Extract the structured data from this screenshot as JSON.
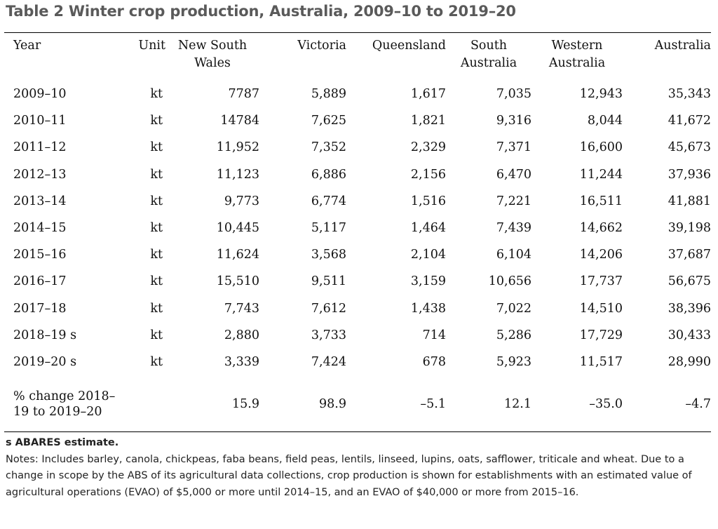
{
  "title": "Table 2 Winter crop production, Australia, 2009–10 to 2019–20",
  "columns": {
    "year": "Year",
    "unit": "Unit",
    "nsw": [
      "New South",
      "Wales"
    ],
    "vic": "Victoria",
    "qld": "Queensland",
    "sa": [
      "South",
      "Australia"
    ],
    "wa": [
      "Western",
      "Australia"
    ],
    "aus": "Australia"
  },
  "rows": [
    {
      "year": "2009–10",
      "unit": "kt",
      "nsw": "7787",
      "vic": "5,889",
      "qld": "1,617",
      "sa": "7,035",
      "wa": "12,943",
      "aus": "35,343"
    },
    {
      "year": "2010–11",
      "unit": "kt",
      "nsw": "14784",
      "vic": "7,625",
      "qld": "1,821",
      "sa": "9,316",
      "wa": "8,044",
      "aus": "41,672"
    },
    {
      "year": "2011–12",
      "unit": "kt",
      "nsw": "11,952",
      "vic": "7,352",
      "qld": "2,329",
      "sa": "7,371",
      "wa": "16,600",
      "aus": "45,673"
    },
    {
      "year": "2012–13",
      "unit": "kt",
      "nsw": "11,123",
      "vic": "6,886",
      "qld": "2,156",
      "sa": "6,470",
      "wa": "11,244",
      "aus": "37,936"
    },
    {
      "year": "2013–14",
      "unit": "kt",
      "nsw": "9,773",
      "vic": "6,774",
      "qld": "1,516",
      "sa": "7,221",
      "wa": "16,511",
      "aus": "41,881"
    },
    {
      "year": "2014–15",
      "unit": "kt",
      "nsw": "10,445",
      "vic": "5,117",
      "qld": "1,464",
      "sa": "7,439",
      "wa": "14,662",
      "aus": "39,198"
    },
    {
      "year": "2015–16",
      "unit": "kt",
      "nsw": "11,624",
      "vic": "3,568",
      "qld": "2,104",
      "sa": "6,104",
      "wa": "14,206",
      "aus": "37,687"
    },
    {
      "year": "2016–17",
      "unit": "kt",
      "nsw": "15,510",
      "vic": "9,511",
      "qld": "3,159",
      "sa": "10,656",
      "wa": "17,737",
      "aus": "56,675"
    },
    {
      "year": "2017–18",
      "unit": "kt",
      "nsw": "7,743",
      "vic": "7,612",
      "qld": "1,438",
      "sa": "7,022",
      "wa": "14,510",
      "aus": "38,396"
    },
    {
      "year": "2018–19 s",
      "unit": "kt",
      "nsw": "2,880",
      "vic": "3,733",
      "qld": "714",
      "sa": "5,286",
      "wa": "17,729",
      "aus": "30,433"
    },
    {
      "year": "2019–20 s",
      "unit": "kt",
      "nsw": "3,339",
      "vic": "7,424",
      "qld": "678",
      "sa": "5,923",
      "wa": "11,517",
      "aus": "28,990"
    }
  ],
  "change_row": {
    "label": "% change 2018–19 to 2019–20",
    "unit": "",
    "nsw": "15.9",
    "vic": "98.9",
    "qld": "–5.1",
    "sa": "12.1",
    "wa": "–35.0",
    "aus": "–4.7"
  },
  "notes": {
    "estimate": "s ABARES estimate.",
    "body": "Notes: Includes barley, canola, chickpeas, faba beans, field peas, lentils, linseed, lupins, oats, safflower, triticale and wheat. Due to a change in scope by the ABS of its agricultural data collections, crop production is shown for establishments with an estimated value of agricultural operations (EVAO) of $5,000 or more until 2014–15, and an EVAO of $40,000 or more from 2015–16."
  }
}
